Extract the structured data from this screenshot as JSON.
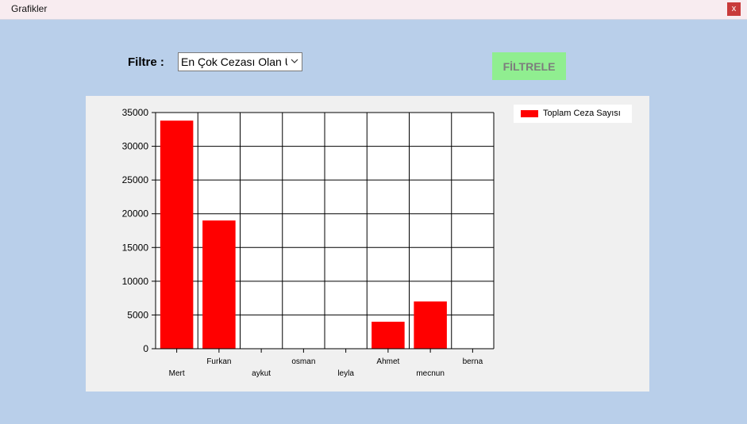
{
  "window": {
    "title": "Grafikler",
    "close_label": "x"
  },
  "filter": {
    "label": "Filtre :",
    "selected": "En Çok Cezası Olan Üye",
    "button_label": "FİLTRELE"
  },
  "chart_data": {
    "type": "bar",
    "categories": [
      "Mert",
      "Furkan",
      "aykut",
      "osman",
      "leyla",
      "Ahmet",
      "mecnun",
      "berna"
    ],
    "series": [
      {
        "name": "Toplam Ceza Sayısı",
        "color": "#ff0000",
        "values": [
          33800,
          19000,
          0,
          0,
          0,
          4000,
          7000,
          0
        ]
      }
    ],
    "ylim": [
      0,
      35000
    ],
    "yticks": [
      0,
      5000,
      10000,
      15000,
      20000,
      25000,
      30000,
      35000
    ],
    "grid": true,
    "legend": "top-right"
  }
}
